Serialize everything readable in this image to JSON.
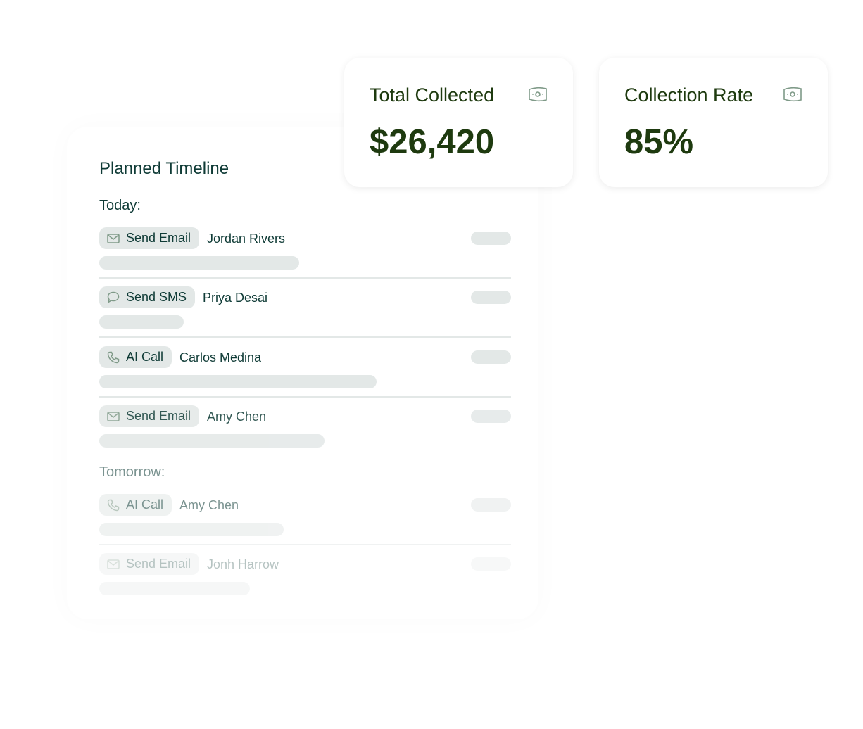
{
  "timeline": {
    "title": "Planned Timeline",
    "today_label": "Today:",
    "tomorrow_label": "Tomorrow:",
    "today": [
      {
        "action": "Send Email",
        "icon": "mail-icon",
        "name": "Jordan Rivers"
      },
      {
        "action": "Send SMS",
        "icon": "chat-bubble-icon",
        "name": "Priya Desai"
      },
      {
        "action": "AI Call",
        "icon": "phone-icon",
        "name": "Carlos Medina"
      },
      {
        "action": "Send Email",
        "icon": "mail-icon",
        "name": "Amy Chen"
      }
    ],
    "tomorrow": [
      {
        "action": "AI Call",
        "icon": "phone-icon",
        "name": "Amy Chen"
      },
      {
        "action": "Send Email",
        "icon": "mail-icon",
        "name": "Jonh Harrow"
      }
    ]
  },
  "stats": [
    {
      "label": "Total Collected",
      "value": "$26,420",
      "icon": "money-bill-icon"
    },
    {
      "label": "Collection Rate",
      "value": "85%",
      "icon": "money-bill-icon"
    }
  ],
  "colors": {
    "primary": "#1e3a0f",
    "text": "#0f3b36",
    "pill": "#e3e8e7",
    "icon": "#7f9a88"
  }
}
